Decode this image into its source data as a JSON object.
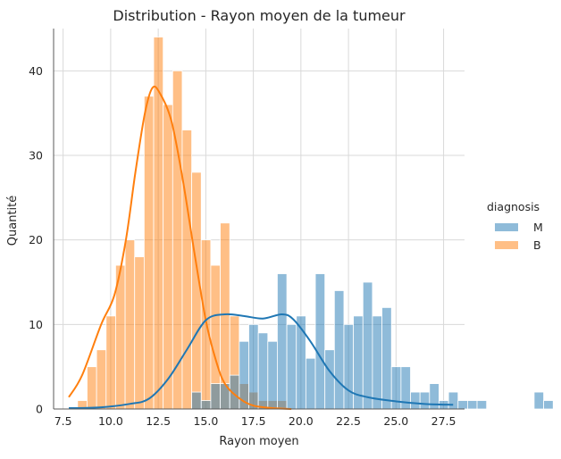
{
  "chart_data": {
    "type": "histogram",
    "title": "Distribution - Rayon moyen de la tumeur",
    "xlabel": "Rayon moyen",
    "ylabel": "Quantité",
    "xlim": [
      7.0,
      28.6
    ],
    "ylim": [
      0,
      45
    ],
    "xticks": [
      "7.5",
      "10.0",
      "12.5",
      "15.0",
      "17.5",
      "20.0",
      "22.5",
      "25.0",
      "27.5"
    ],
    "yticks": [
      "0",
      "10",
      "20",
      "30",
      "40"
    ],
    "grid": true,
    "legend": {
      "title": "diagnosis",
      "position": "right",
      "entries": [
        "M",
        "B"
      ]
    },
    "colors": {
      "M": "#1f77b4",
      "B": "#ff7f0e",
      "bar_alpha": 0.5,
      "grid": "#d9d9d9"
    },
    "bin_start": 7.76,
    "bin_width": 0.5,
    "series": [
      {
        "name": "M",
        "counts": [
          0,
          0,
          0,
          0,
          0,
          0,
          0,
          0,
          0,
          0,
          0,
          0,
          0,
          2,
          1,
          3,
          3,
          4,
          8,
          10,
          9,
          8,
          16,
          10,
          11,
          6,
          16,
          7,
          14,
          10,
          11,
          15,
          11,
          12,
          5,
          5,
          2,
          2,
          3,
          1,
          2,
          1,
          1,
          1,
          0,
          0,
          0,
          0,
          0,
          2,
          1
        ],
        "kde": [
          [
            7.8,
            0.1
          ],
          [
            9.5,
            0.2
          ],
          [
            11.0,
            0.6
          ],
          [
            12.0,
            1.2
          ],
          [
            13.0,
            3.5
          ],
          [
            14.0,
            7.0
          ],
          [
            15.0,
            10.5
          ],
          [
            16.0,
            11.2
          ],
          [
            17.0,
            11.0
          ],
          [
            18.0,
            10.7
          ],
          [
            19.0,
            11.2
          ],
          [
            19.6,
            10.6
          ],
          [
            20.5,
            8.0
          ],
          [
            21.5,
            4.5
          ],
          [
            22.5,
            2.2
          ],
          [
            23.5,
            1.4
          ],
          [
            25.0,
            0.9
          ],
          [
            26.5,
            0.6
          ],
          [
            28.0,
            0.5
          ]
        ]
      },
      {
        "name": "B",
        "counts": [
          0,
          1,
          5,
          7,
          11,
          17,
          20,
          18,
          37,
          44,
          36,
          40,
          33,
          28,
          20,
          17,
          22,
          11,
          3,
          2,
          1,
          1,
          1,
          0,
          0,
          0,
          0,
          0,
          0,
          0,
          0,
          0,
          0,
          0,
          0,
          0,
          0,
          0,
          0,
          0,
          0,
          0,
          0,
          0,
          0,
          0,
          0,
          0,
          0,
          0,
          0
        ],
        "kde": [
          [
            7.8,
            1.4
          ],
          [
            8.5,
            4.0
          ],
          [
            9.5,
            10.0
          ],
          [
            10.2,
            13.5
          ],
          [
            10.8,
            20.0
          ],
          [
            11.3,
            28.0
          ],
          [
            11.8,
            35.0
          ],
          [
            12.2,
            38.0
          ],
          [
            12.6,
            37.3
          ],
          [
            13.2,
            34.0
          ],
          [
            13.8,
            27.0
          ],
          [
            14.4,
            18.5
          ],
          [
            15.0,
            10.5
          ],
          [
            15.5,
            6.0
          ],
          [
            16.0,
            3.0
          ],
          [
            16.8,
            1.2
          ],
          [
            17.5,
            0.4
          ],
          [
            18.5,
            0.1
          ],
          [
            19.5,
            0.0
          ]
        ]
      }
    ]
  }
}
